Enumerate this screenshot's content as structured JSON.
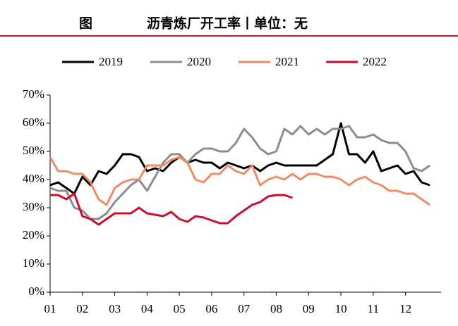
{
  "chart_data": {
    "type": "line",
    "title_label": "图",
    "title": "沥青炼厂开工率丨单位：无",
    "x": [
      1,
      1.25,
      1.5,
      1.75,
      2,
      2.25,
      2.5,
      2.75,
      3,
      3.25,
      3.5,
      3.75,
      4,
      4.25,
      4.5,
      4.75,
      5,
      5.25,
      5.5,
      5.75,
      6,
      6.25,
      6.5,
      6.75,
      7,
      7.25,
      7.5,
      7.75,
      8,
      8.25,
      8.5,
      8.75,
      9,
      9.25,
      9.5,
      9.75,
      10,
      10.25,
      10.5,
      10.75,
      11,
      11.25,
      11.5,
      11.75,
      12,
      12.25,
      12.5,
      12.75
    ],
    "xlim": [
      1,
      13.1
    ],
    "xticks": [
      {
        "value": 1,
        "label": "01"
      },
      {
        "value": 2,
        "label": "02"
      },
      {
        "value": 3,
        "label": "03"
      },
      {
        "value": 4,
        "label": "04"
      },
      {
        "value": 5,
        "label": "05"
      },
      {
        "value": 6,
        "label": "06"
      },
      {
        "value": 7,
        "label": "07"
      },
      {
        "value": 8,
        "label": "08"
      },
      {
        "value": 9,
        "label": "09"
      },
      {
        "value": 10,
        "label": "10"
      },
      {
        "value": 11,
        "label": "11"
      },
      {
        "value": 12,
        "label": "12"
      }
    ],
    "ylim": [
      0,
      70
    ],
    "yticks": [
      {
        "value": 0,
        "label": "0%"
      },
      {
        "value": 10,
        "label": "10%"
      },
      {
        "value": 20,
        "label": "20%"
      },
      {
        "value": 30,
        "label": "30%"
      },
      {
        "value": 40,
        "label": "40%"
      },
      {
        "value": 50,
        "label": "50%"
      },
      {
        "value": 60,
        "label": "60%"
      },
      {
        "value": 70,
        "label": "70%"
      }
    ],
    "series": [
      {
        "name": "2019",
        "color": "#000000",
        "values": [
          38,
          39,
          37,
          35,
          41,
          38,
          43,
          42,
          45,
          49,
          49,
          48,
          43,
          44,
          43,
          46,
          48,
          46,
          47,
          46,
          46,
          44,
          46,
          45,
          44,
          45,
          43,
          45,
          46,
          45,
          45,
          45,
          45,
          45,
          47,
          49,
          60,
          49,
          49,
          46,
          50,
          43,
          44,
          45,
          42,
          43,
          39,
          38
        ]
      },
      {
        "name": "2020",
        "color": "#8c8c8c",
        "values": [
          37,
          36,
          36,
          30,
          29,
          26,
          26,
          28,
          32,
          35,
          38,
          40,
          36,
          41,
          46,
          49,
          49,
          46,
          49,
          51,
          51,
          50,
          50,
          53,
          58,
          55,
          51,
          49,
          50,
          58,
          56,
          59,
          56,
          58,
          56,
          58,
          58,
          59,
          55,
          55,
          56,
          54,
          53,
          53,
          50,
          44,
          43,
          45
        ]
      },
      {
        "name": "2021",
        "color": "#ee8c66",
        "values": [
          48,
          43,
          43,
          42,
          42,
          39,
          33,
          31,
          37,
          39,
          40,
          40,
          45,
          45,
          45,
          47,
          48,
          46,
          40,
          39,
          42,
          42,
          45,
          43,
          42,
          45,
          38,
          40,
          41,
          40,
          42,
          40,
          42,
          42,
          41,
          41,
          40,
          38,
          40,
          41,
          39,
          38,
          36,
          36,
          35,
          35,
          33,
          31
        ]
      },
      {
        "name": "2022",
        "color": "#c8102e",
        "values": [
          34.5,
          34.5,
          33,
          35,
          27,
          26,
          24,
          26,
          28,
          28,
          28,
          30,
          28,
          27.5,
          27,
          28.5,
          26,
          25,
          27,
          26.5,
          25.5,
          24.5,
          24.5,
          27,
          29,
          31,
          32,
          34,
          34.5,
          34.5,
          33.5,
          null,
          null,
          null,
          null,
          null,
          null,
          null,
          null,
          null,
          null,
          null,
          null,
          null,
          null,
          null,
          null,
          null
        ]
      }
    ]
  }
}
